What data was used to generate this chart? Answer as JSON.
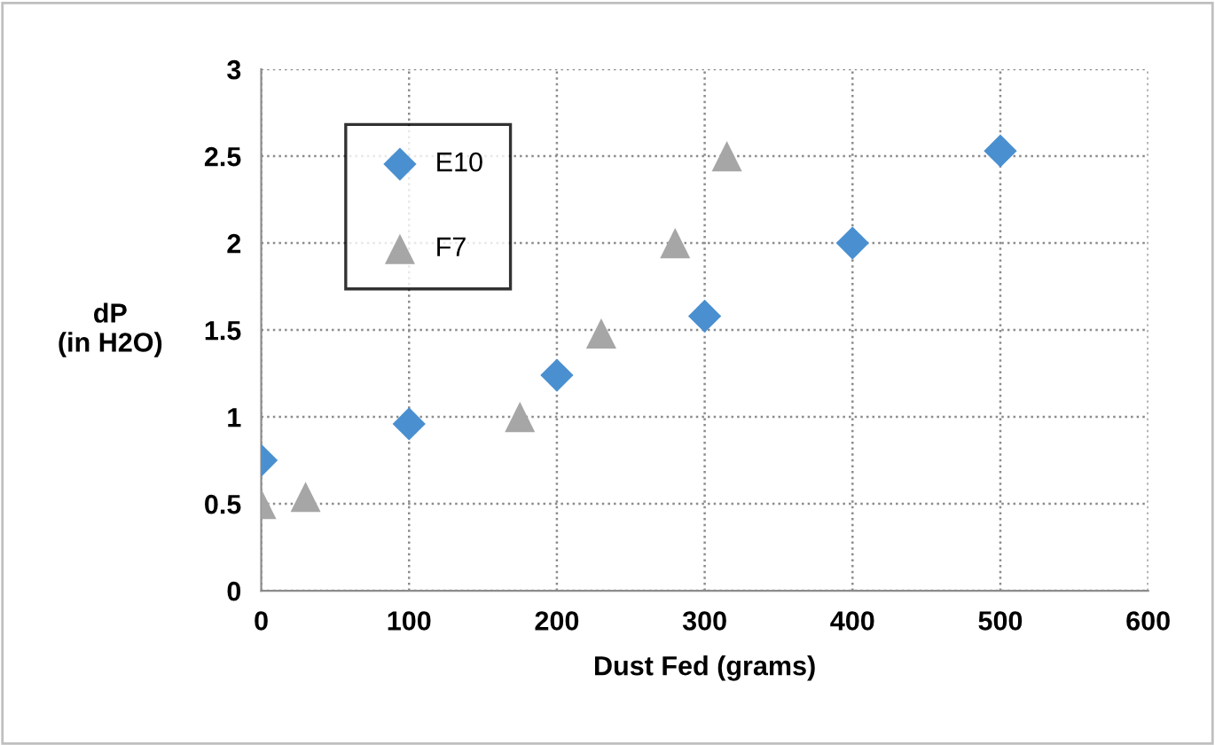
{
  "chart_data": {
    "type": "scatter",
    "xlabel": "Dust Fed (grams)",
    "ylabel": "dP\n(in H2O)",
    "series": [
      {
        "name": "E10",
        "color": "#4a90d0",
        "marker": "diamond",
        "x": [
          0,
          100,
          200,
          300,
          400,
          500
        ],
        "values": [
          0.75,
          0.96,
          1.24,
          1.58,
          2.0,
          2.53
        ]
      },
      {
        "name": "F7",
        "color": "#a6a6a6",
        "marker": "triangle",
        "x": [
          0,
          30,
          175,
          230,
          280,
          315
        ],
        "values": [
          0.5,
          0.54,
          1.0,
          1.48,
          2.0,
          2.5
        ]
      }
    ],
    "xlim": [
      0,
      600
    ],
    "xticks": [
      0,
      100,
      200,
      300,
      400,
      500,
      600
    ],
    "ylim": [
      0,
      3
    ],
    "yticks": [
      0,
      0.5,
      1,
      1.5,
      2,
      2.5,
      3
    ],
    "grid": true,
    "legend": "top left"
  }
}
